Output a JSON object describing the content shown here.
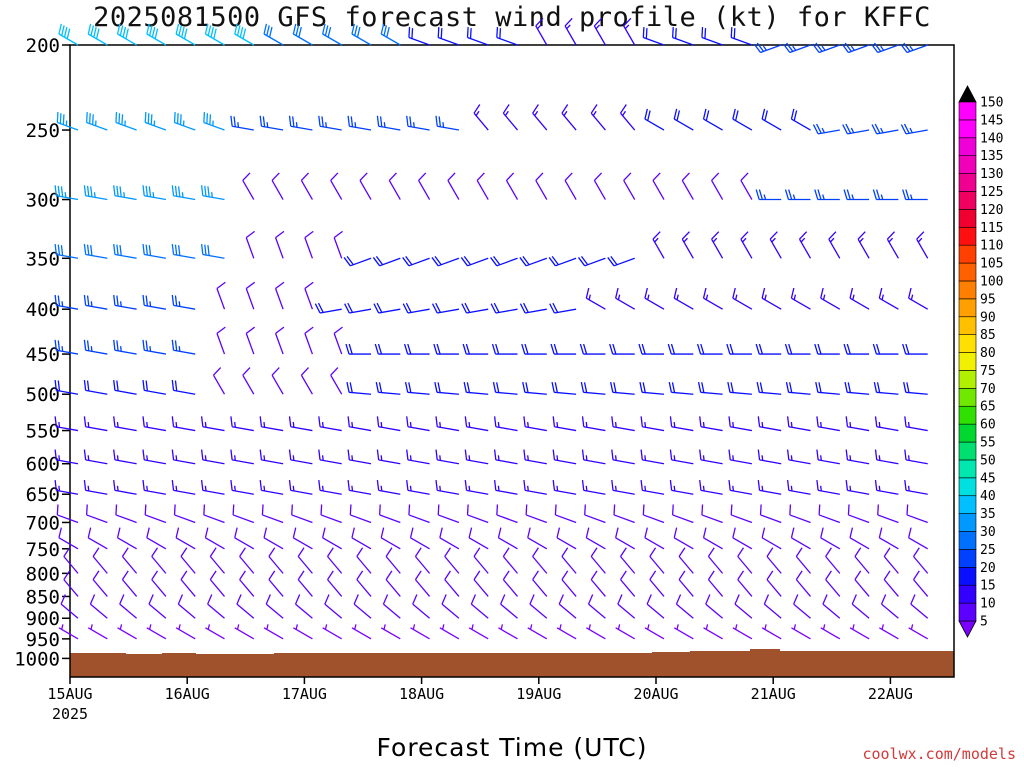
{
  "title": "2025081500 GFS forecast wind profile (kt) for KFFC",
  "credit": "coolwx.com/models",
  "chart_data": {
    "type": "wind-barb-profile",
    "title": "2025081500 GFS forecast wind profile (kt) for KFFC",
    "xlabel": "Forecast Time (UTC)",
    "ylabel": "",
    "x_ticks": [
      {
        "day": 0,
        "label": "15AUG",
        "sublabel": "2025"
      },
      {
        "day": 1,
        "label": "16AUG"
      },
      {
        "day": 2,
        "label": "17AUG"
      },
      {
        "day": 3,
        "label": "18AUG"
      },
      {
        "day": 4,
        "label": "19AUG"
      },
      {
        "day": 5,
        "label": "20AUG"
      },
      {
        "day": 6,
        "label": "21AUG"
      },
      {
        "day": 7,
        "label": "22AUG"
      }
    ],
    "xlim_days": [
      0,
      7.75
    ],
    "y_axis": "pressure (hPa), log scale, inverted",
    "ylim": [
      1050,
      200
    ],
    "pressure_levels": [
      200,
      250,
      300,
      350,
      400,
      450,
      500,
      550,
      600,
      650,
      700,
      750,
      800,
      850,
      900,
      950,
      1000
    ],
    "time_step_hours": 6,
    "colorbar": {
      "levels": [
        5,
        10,
        15,
        20,
        25,
        30,
        35,
        40,
        45,
        50,
        55,
        60,
        65,
        70,
        75,
        80,
        85,
        90,
        95,
        100,
        105,
        110,
        115,
        120,
        125,
        130,
        135,
        140,
        145,
        150
      ],
      "colors": [
        "#7a00ff",
        "#5c00ff",
        "#3300ff",
        "#0a10ff",
        "#0040ff",
        "#0070ff",
        "#0099ff",
        "#00c0ff",
        "#00e0e0",
        "#00e8b0",
        "#00e070",
        "#00d830",
        "#30e000",
        "#70e800",
        "#b0f000",
        "#f0f000",
        "#ffe000",
        "#ffc000",
        "#ffa000",
        "#ff8000",
        "#ff6000",
        "#ff4000",
        "#ff1010",
        "#f00030",
        "#f00060",
        "#f00090",
        "#f000b8",
        "#f000d8",
        "#ff00ff",
        "#000000"
      ]
    },
    "ground": {
      "color": "#a0522d"
    },
    "wind_barbs": [
      {
        "level": 200,
        "segments": [
          {
            "day_from": 0.0,
            "day_to": 1.75,
            "speed_kt": 40,
            "dir_deg": 300
          },
          {
            "day_from": 1.75,
            "day_to": 3.0,
            "speed_kt": 30,
            "dir_deg": 300
          },
          {
            "day_from": 3.0,
            "day_to": 4.0,
            "speed_kt": 20,
            "dir_deg": 290
          },
          {
            "day_from": 4.0,
            "day_to": 5.0,
            "speed_kt": 15,
            "dir_deg": 330
          },
          {
            "day_from": 5.0,
            "day_to": 6.0,
            "speed_kt": 20,
            "dir_deg": 290
          },
          {
            "day_from": 6.0,
            "day_to": 7.75,
            "speed_kt": 25,
            "dir_deg": 250
          }
        ]
      },
      {
        "level": 250,
        "segments": [
          {
            "day_from": 0.0,
            "day_to": 1.5,
            "speed_kt": 35,
            "dir_deg": 290
          },
          {
            "day_from": 1.5,
            "day_to": 3.5,
            "speed_kt": 25,
            "dir_deg": 280
          },
          {
            "day_from": 3.5,
            "day_to": 5.0,
            "speed_kt": 15,
            "dir_deg": 320
          },
          {
            "day_from": 5.0,
            "day_to": 6.5,
            "speed_kt": 20,
            "dir_deg": 300
          },
          {
            "day_from": 6.5,
            "day_to": 7.75,
            "speed_kt": 25,
            "dir_deg": 260
          }
        ]
      },
      {
        "level": 300,
        "segments": [
          {
            "day_from": 0.0,
            "day_to": 1.5,
            "speed_kt": 35,
            "dir_deg": 280
          },
          {
            "day_from": 1.5,
            "day_to": 6.0,
            "speed_kt": 10,
            "dir_deg": 330
          },
          {
            "day_from": 6.0,
            "day_to": 7.75,
            "speed_kt": 25,
            "dir_deg": 270
          }
        ]
      },
      {
        "level": 350,
        "segments": [
          {
            "day_from": 0.0,
            "day_to": 1.5,
            "speed_kt": 30,
            "dir_deg": 280
          },
          {
            "day_from": 1.5,
            "day_to": 2.5,
            "speed_kt": 10,
            "dir_deg": 340
          },
          {
            "day_from": 2.5,
            "day_to": 5.0,
            "speed_kt": 20,
            "dir_deg": 250
          },
          {
            "day_from": 5.0,
            "day_to": 7.75,
            "speed_kt": 15,
            "dir_deg": 330
          }
        ]
      },
      {
        "level": 400,
        "segments": [
          {
            "day_from": 0.0,
            "day_to": 1.25,
            "speed_kt": 25,
            "dir_deg": 280
          },
          {
            "day_from": 1.25,
            "day_to": 2.25,
            "speed_kt": 10,
            "dir_deg": 340
          },
          {
            "day_from": 2.25,
            "day_to": 4.5,
            "speed_kt": 20,
            "dir_deg": 260
          },
          {
            "day_from": 4.5,
            "day_to": 7.75,
            "speed_kt": 15,
            "dir_deg": 300
          }
        ]
      },
      {
        "level": 450,
        "segments": [
          {
            "day_from": 0.0,
            "day_to": 1.25,
            "speed_kt": 25,
            "dir_deg": 280
          },
          {
            "day_from": 1.25,
            "day_to": 2.5,
            "speed_kt": 10,
            "dir_deg": 340
          },
          {
            "day_from": 2.5,
            "day_to": 7.75,
            "speed_kt": 20,
            "dir_deg": 270
          }
        ]
      },
      {
        "level": 500,
        "segments": [
          {
            "day_from": 0.0,
            "day_to": 1.25,
            "speed_kt": 20,
            "dir_deg": 280
          },
          {
            "day_from": 1.25,
            "day_to": 2.5,
            "speed_kt": 10,
            "dir_deg": 330
          },
          {
            "day_from": 2.5,
            "day_to": 7.75,
            "speed_kt": 20,
            "dir_deg": 275
          }
        ]
      },
      {
        "level": 550,
        "segments": [
          {
            "day_from": 0.0,
            "day_to": 7.75,
            "speed_kt": 15,
            "dir_deg": 280
          }
        ]
      },
      {
        "level": 600,
        "segments": [
          {
            "day_from": 0.0,
            "day_to": 7.75,
            "speed_kt": 15,
            "dir_deg": 280
          }
        ]
      },
      {
        "level": 650,
        "segments": [
          {
            "day_from": 0.0,
            "day_to": 7.75,
            "speed_kt": 15,
            "dir_deg": 280
          }
        ]
      },
      {
        "level": 700,
        "segments": [
          {
            "day_from": 0.0,
            "day_to": 7.75,
            "speed_kt": 10,
            "dir_deg": 290
          }
        ]
      },
      {
        "level": 750,
        "segments": [
          {
            "day_from": 0.0,
            "day_to": 7.75,
            "speed_kt": 10,
            "dir_deg": 300
          }
        ]
      },
      {
        "level": 800,
        "segments": [
          {
            "day_from": 0.0,
            "day_to": 7.75,
            "speed_kt": 10,
            "dir_deg": 320
          }
        ]
      },
      {
        "level": 850,
        "segments": [
          {
            "day_from": 0.0,
            "day_to": 7.75,
            "speed_kt": 10,
            "dir_deg": 320
          }
        ]
      },
      {
        "level": 900,
        "segments": [
          {
            "day_from": 0.0,
            "day_to": 7.75,
            "speed_kt": 10,
            "dir_deg": 310
          }
        ]
      },
      {
        "level": 950,
        "segments": [
          {
            "day_from": 0.0,
            "day_to": 7.75,
            "speed_kt": 5,
            "dir_deg": 300
          }
        ]
      }
    ]
  }
}
